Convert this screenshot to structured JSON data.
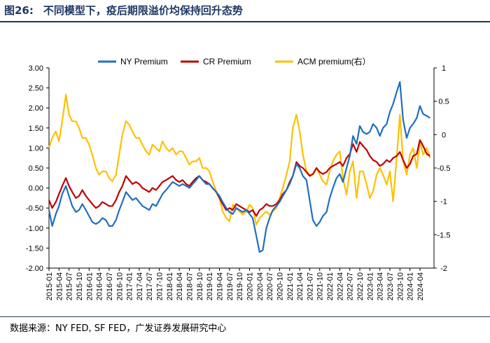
{
  "header": {
    "figure_number": "图26:",
    "title": "不同模型下，疫后期限溢价均保持回升态势"
  },
  "footer": {
    "source": "数据来源：NY FED, SF FED，广发证券发展研究中心"
  },
  "chart_data": {
    "type": "line",
    "title": "不同模型下，疫后期限溢价均保持回升态势",
    "xlabel": "",
    "ylabel": "",
    "y_left_ticks": [
      "3.00",
      "2.50",
      "2.00",
      "1.50",
      "1.00",
      "0.50",
      "0.00",
      "-0.50",
      "-1.00",
      "-1.50",
      "-2.00"
    ],
    "y_left_lim": [
      -2.0,
      3.0
    ],
    "y_right_ticks": [
      "1",
      "0.5",
      "0",
      "-0.5",
      "-1",
      "-1.5",
      "-2"
    ],
    "y_right_lim": [
      -2.0,
      1.0
    ],
    "x_ticks": [
      "2015-01",
      "2015-04",
      "2015-07",
      "2015-10",
      "2016-01",
      "2016-04",
      "2016-07",
      "2016-10",
      "2017-01",
      "2017-04",
      "2017-07",
      "2017-10",
      "2018-01",
      "2018-04",
      "2018-07",
      "2018-10",
      "2019-01",
      "2019-04",
      "2019-07",
      "2019-10",
      "2020-01",
      "2020-04",
      "2020-07",
      "2020-10",
      "2021-01",
      "2021-04",
      "2021-07",
      "2021-10",
      "2022-01",
      "2022-04",
      "2022-07",
      "2022-10",
      "2023-01",
      "2023-04",
      "2023-07",
      "2023-10",
      "2024-01",
      "2024-04"
    ],
    "x_lim": [
      2015.0,
      2024.6
    ],
    "legend_position": "top",
    "series": [
      {
        "name": "NY Premium",
        "axis": "left",
        "color": "#1f6fc0",
        "x": [
          2015.0,
          2015.08,
          2015.17,
          2015.25,
          2015.33,
          2015.42,
          2015.5,
          2015.58,
          2015.67,
          2015.75,
          2015.83,
          2015.92,
          2016.0,
          2016.08,
          2016.17,
          2016.25,
          2016.33,
          2016.42,
          2016.5,
          2016.58,
          2016.67,
          2016.75,
          2016.83,
          2016.92,
          2017.0,
          2017.08,
          2017.17,
          2017.25,
          2017.33,
          2017.42,
          2017.5,
          2017.58,
          2017.67,
          2017.75,
          2017.83,
          2017.92,
          2018.0,
          2018.08,
          2018.17,
          2018.25,
          2018.33,
          2018.42,
          2018.5,
          2018.58,
          2018.67,
          2018.75,
          2018.83,
          2018.92,
          2019.0,
          2019.08,
          2019.17,
          2019.25,
          2019.33,
          2019.42,
          2019.5,
          2019.58,
          2019.67,
          2019.75,
          2019.83,
          2019.92,
          2020.0,
          2020.08,
          2020.17,
          2020.25,
          2020.33,
          2020.42,
          2020.5,
          2020.58,
          2020.67,
          2020.75,
          2020.83,
          2020.92,
          2021.0,
          2021.08,
          2021.17,
          2021.25,
          2021.33,
          2021.42,
          2021.5,
          2021.58,
          2021.67,
          2021.75,
          2021.83,
          2021.92,
          2022.0,
          2022.08,
          2022.17,
          2022.25,
          2022.33,
          2022.42,
          2022.5,
          2022.58,
          2022.67,
          2022.75,
          2022.83,
          2022.92,
          2023.0,
          2023.08,
          2023.17,
          2023.25,
          2023.33,
          2023.42,
          2023.5,
          2023.58,
          2023.67,
          2023.75,
          2023.83,
          2023.92,
          2024.0,
          2024.08,
          2024.17,
          2024.25,
          2024.33,
          2024.42,
          2024.5
        ],
        "values": [
          -0.55,
          -0.95,
          -0.65,
          -0.45,
          -0.15,
          0.05,
          -0.2,
          -0.45,
          -0.6,
          -0.55,
          -0.4,
          -0.55,
          -0.7,
          -0.85,
          -0.9,
          -0.85,
          -0.75,
          -0.8,
          -0.95,
          -0.95,
          -0.8,
          -0.55,
          -0.35,
          -0.1,
          -0.2,
          -0.3,
          -0.25,
          -0.35,
          -0.45,
          -0.5,
          -0.55,
          -0.4,
          -0.45,
          -0.3,
          -0.15,
          -0.05,
          0.05,
          0.15,
          0.1,
          0.05,
          0.1,
          0.05,
          0.0,
          0.1,
          0.2,
          0.3,
          0.2,
          0.1,
          0.1,
          0.0,
          -0.1,
          -0.2,
          -0.35,
          -0.5,
          -0.6,
          -0.65,
          -0.5,
          -0.55,
          -0.6,
          -0.55,
          -0.65,
          -0.75,
          -1.2,
          -1.6,
          -1.55,
          -1.0,
          -0.75,
          -0.55,
          -0.45,
          -0.35,
          -0.2,
          -0.05,
          0.1,
          0.3,
          0.6,
          0.5,
          0.3,
          0.2,
          -0.3,
          -0.8,
          -0.95,
          -0.85,
          -0.7,
          -0.6,
          -0.25,
          0.0,
          0.25,
          0.35,
          0.15,
          0.5,
          0.8,
          1.3,
          1.1,
          1.55,
          1.4,
          1.35,
          1.4,
          1.6,
          1.5,
          1.3,
          1.5,
          1.6,
          1.9,
          2.1,
          2.4,
          2.65,
          1.7,
          1.25,
          1.5,
          1.6,
          1.75,
          2.05,
          1.85,
          1.8,
          1.75
        ]
      },
      {
        "name": "CR Premium",
        "axis": "left",
        "color": "#c00000",
        "x": [
          2015.0,
          2015.08,
          2015.17,
          2015.25,
          2015.33,
          2015.42,
          2015.5,
          2015.58,
          2015.67,
          2015.75,
          2015.83,
          2015.92,
          2016.0,
          2016.08,
          2016.17,
          2016.25,
          2016.33,
          2016.42,
          2016.5,
          2016.58,
          2016.67,
          2016.75,
          2016.83,
          2016.92,
          2017.0,
          2017.08,
          2017.17,
          2017.25,
          2017.33,
          2017.42,
          2017.5,
          2017.58,
          2017.67,
          2017.75,
          2017.83,
          2017.92,
          2018.0,
          2018.08,
          2018.17,
          2018.25,
          2018.33,
          2018.42,
          2018.5,
          2018.58,
          2018.67,
          2018.75,
          2018.83,
          2018.92,
          2019.0,
          2019.08,
          2019.17,
          2019.25,
          2019.33,
          2019.42,
          2019.5,
          2019.58,
          2019.67,
          2019.75,
          2019.83,
          2019.92,
          2020.0,
          2020.08,
          2020.17,
          2020.25,
          2020.33,
          2020.42,
          2020.5,
          2020.58,
          2020.67,
          2020.75,
          2020.83,
          2020.92,
          2021.0,
          2021.08,
          2021.17,
          2021.25,
          2021.33,
          2021.42,
          2021.5,
          2021.58,
          2021.67,
          2021.75,
          2021.83,
          2021.92,
          2022.0,
          2022.08,
          2022.17,
          2022.25,
          2022.33,
          2022.42,
          2022.5,
          2022.58,
          2022.67,
          2022.75,
          2022.83,
          2022.92,
          2023.0,
          2023.08,
          2023.17,
          2023.25,
          2023.33,
          2023.42,
          2023.5,
          2023.58,
          2023.67,
          2023.75,
          2023.83,
          2023.92,
          2024.0,
          2024.08,
          2024.17,
          2024.25,
          2024.33,
          2024.42,
          2024.5
        ],
        "values": [
          -0.3,
          -0.5,
          -0.35,
          -0.15,
          0.05,
          0.25,
          0.05,
          -0.1,
          -0.25,
          -0.2,
          -0.05,
          -0.2,
          -0.3,
          -0.4,
          -0.5,
          -0.45,
          -0.35,
          -0.4,
          -0.45,
          -0.45,
          -0.3,
          -0.1,
          0.05,
          0.3,
          0.2,
          0.1,
          0.15,
          0.1,
          0.0,
          -0.05,
          -0.1,
          0.0,
          -0.05,
          0.05,
          0.15,
          0.2,
          0.25,
          0.3,
          0.2,
          0.15,
          0.2,
          0.1,
          0.05,
          0.15,
          0.25,
          0.3,
          0.2,
          0.15,
          0.1,
          0.0,
          -0.1,
          -0.25,
          -0.4,
          -0.55,
          -0.5,
          -0.55,
          -0.4,
          -0.45,
          -0.5,
          -0.55,
          -0.6,
          -0.55,
          -0.7,
          -0.55,
          -0.5,
          -0.4,
          -0.45,
          -0.45,
          -0.4,
          -0.3,
          -0.15,
          -0.05,
          0.15,
          0.3,
          0.65,
          0.55,
          0.5,
          0.4,
          0.3,
          0.35,
          0.5,
          0.4,
          0.35,
          0.4,
          0.5,
          0.55,
          0.6,
          0.65,
          0.55,
          0.75,
          0.85,
          1.1,
          0.9,
          1.15,
          1.05,
          0.95,
          0.8,
          0.7,
          0.65,
          0.55,
          0.6,
          0.7,
          0.65,
          0.75,
          0.8,
          0.9,
          0.7,
          0.5,
          0.6,
          0.8,
          0.85,
          1.2,
          1.05,
          0.85,
          0.8
        ]
      },
      {
        "name": "ACM premium(右）",
        "axis": "right",
        "color": "#ffc000",
        "x": [
          2015.0,
          2015.08,
          2015.17,
          2015.25,
          2015.33,
          2015.42,
          2015.5,
          2015.58,
          2015.67,
          2015.75,
          2015.83,
          2015.92,
          2016.0,
          2016.08,
          2016.17,
          2016.25,
          2016.33,
          2016.42,
          2016.5,
          2016.58,
          2016.67,
          2016.75,
          2016.83,
          2016.92,
          2017.0,
          2017.08,
          2017.17,
          2017.25,
          2017.33,
          2017.42,
          2017.5,
          2017.58,
          2017.67,
          2017.75,
          2017.83,
          2017.92,
          2018.0,
          2018.08,
          2018.17,
          2018.25,
          2018.33,
          2018.42,
          2018.5,
          2018.58,
          2018.67,
          2018.75,
          2018.83,
          2018.92,
          2019.0,
          2019.08,
          2019.17,
          2019.25,
          2019.33,
          2019.42,
          2019.5,
          2019.58,
          2019.67,
          2019.75,
          2019.83,
          2019.92,
          2020.0,
          2020.08,
          2020.17,
          2020.25,
          2020.33,
          2020.42,
          2020.5,
          2020.58,
          2020.67,
          2020.75,
          2020.83,
          2020.92,
          2021.0,
          2021.08,
          2021.17,
          2021.25,
          2021.33,
          2021.42,
          2021.5,
          2021.58,
          2021.67,
          2021.75,
          2021.83,
          2021.92,
          2022.0,
          2022.08,
          2022.17,
          2022.25,
          2022.33,
          2022.42,
          2022.5,
          2022.58,
          2022.67,
          2022.75,
          2022.83,
          2022.92,
          2023.0,
          2023.08,
          2023.17,
          2023.25,
          2023.33,
          2023.42,
          2023.5,
          2023.58,
          2023.67,
          2023.75,
          2023.83,
          2023.92,
          2024.0,
          2024.08,
          2024.17,
          2024.25,
          2024.33,
          2024.42,
          2024.5
        ],
        "values": [
          -0.2,
          -0.05,
          0.05,
          -0.1,
          0.2,
          0.6,
          0.3,
          0.2,
          0.2,
          0.1,
          -0.05,
          -0.05,
          -0.15,
          -0.3,
          -0.5,
          -0.6,
          -0.55,
          -0.55,
          -0.65,
          -0.7,
          -0.6,
          -0.3,
          0.0,
          0.2,
          0.15,
          0.05,
          -0.05,
          -0.05,
          -0.15,
          -0.25,
          -0.3,
          -0.15,
          -0.2,
          -0.25,
          -0.1,
          -0.2,
          -0.25,
          -0.2,
          -0.3,
          -0.25,
          -0.25,
          -0.35,
          -0.45,
          -0.4,
          -0.4,
          -0.35,
          -0.5,
          -0.5,
          -0.55,
          -0.7,
          -0.85,
          -0.95,
          -1.15,
          -1.25,
          -1.3,
          -1.05,
          -1.1,
          -1.15,
          -1.2,
          -1.15,
          -1.05,
          -1.1,
          -1.35,
          -1.25,
          -1.2,
          -1.15,
          -1.2,
          -1.15,
          -1.1,
          -0.95,
          -0.8,
          -0.6,
          -0.4,
          0.1,
          0.3,
          0.05,
          -0.3,
          -0.55,
          -0.6,
          -0.6,
          -0.5,
          -0.6,
          -0.7,
          -0.75,
          -0.55,
          -0.4,
          -0.3,
          -0.25,
          -0.65,
          -0.9,
          -0.55,
          -0.4,
          -0.95,
          -0.55,
          -0.55,
          -0.75,
          -0.95,
          -0.85,
          -0.6,
          -0.5,
          -0.6,
          -0.75,
          -0.55,
          -1.0,
          -0.35,
          0.3,
          -0.4,
          -0.6,
          -0.3,
          -0.2,
          -0.5,
          -0.1,
          -0.3,
          -0.2,
          -0.35
        ]
      }
    ]
  }
}
